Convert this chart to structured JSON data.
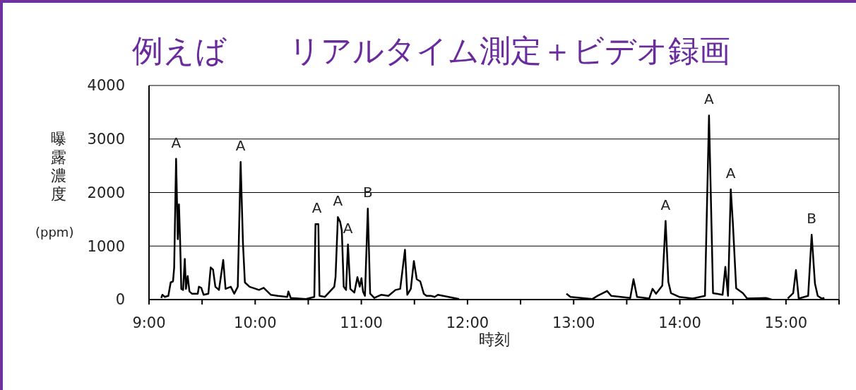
{
  "chart_data": {
    "type": "line",
    "title": "例えば　　リアルタイム測定＋ビデオ録画",
    "xlabel": "時刻",
    "ylabel": "曝露濃度 (ppm)",
    "x": [
      9.115,
      9.126,
      9.148,
      9.182,
      9.204,
      9.226,
      9.237,
      9.255,
      9.271,
      9.282,
      9.293,
      9.304,
      9.321,
      9.337,
      9.348,
      9.364,
      9.381,
      9.404,
      9.459,
      9.47,
      9.492,
      9.514,
      9.559,
      9.581,
      9.603,
      9.625,
      9.659,
      9.699,
      9.721,
      9.77,
      9.803,
      9.836,
      9.863,
      9.885,
      9.903,
      9.947,
      10.036,
      10.08,
      10.146,
      10.213,
      10.302,
      10.313,
      10.335,
      10.479,
      10.557,
      10.568,
      10.595,
      10.606,
      10.657,
      10.745,
      10.757,
      10.779,
      10.801,
      10.816,
      10.834,
      10.856,
      10.874,
      10.896,
      10.934,
      10.963,
      10.985,
      11.001,
      11.016,
      11.034,
      11.061,
      11.083,
      11.122,
      11.189,
      11.255,
      11.322,
      11.366,
      11.411,
      11.433,
      11.466,
      11.495,
      11.522,
      11.555,
      11.588,
      11.614,
      11.655,
      11.691,
      11.721,
      11.921,
      12.4,
      12.932,
      12.97,
      13.175,
      13.226,
      13.315,
      13.354,
      13.533,
      13.564,
      13.597,
      13.712,
      13.743,
      13.776,
      13.835,
      13.866,
      13.892,
      13.917,
      13.993,
      14.122,
      14.237,
      14.275,
      14.313,
      14.403,
      14.429,
      14.454,
      14.48,
      14.5,
      14.531,
      14.595,
      14.634,
      14.812,
      14.864,
      14.95,
      15.017,
      15.068,
      15.094,
      15.12,
      15.209,
      15.242,
      15.273,
      15.299,
      15.337,
      15.362
    ],
    "series": [
      {
        "color": "#000000",
        "values": [
          30,
          90,
          50,
          70,
          320,
          340,
          600,
          2630,
          1130,
          1780,
          1090,
          200,
          180,
          760,
          200,
          440,
          150,
          110,
          110,
          240,
          220,
          90,
          110,
          600,
          560,
          240,
          180,
          740,
          200,
          240,
          110,
          240,
          2570,
          1050,
          320,
          240,
          180,
          220,
          90,
          70,
          50,
          150,
          30,
          10,
          50,
          1410,
          1410,
          70,
          50,
          240,
          420,
          1540,
          1450,
          1290,
          240,
          180,
          1030,
          200,
          130,
          420,
          240,
          400,
          150,
          70,
          1700,
          110,
          30,
          90,
          70,
          180,
          200,
          930,
          90,
          200,
          720,
          380,
          340,
          110,
          70,
          70,
          50,
          90,
          10,
          null,
          110,
          50,
          10,
          70,
          160,
          70,
          30,
          380,
          50,
          20,
          200,
          110,
          260,
          1470,
          330,
          120,
          50,
          20,
          70,
          3440,
          120,
          90,
          610,
          70,
          2060,
          1420,
          210,
          120,
          20,
          30,
          0,
          null,
          20,
          120,
          550,
          20,
          70,
          1210,
          300,
          70,
          20,
          30
        ]
      }
    ],
    "xlim": [
      9,
      15.5
    ],
    "xticks": [
      {
        "value": 9,
        "label": "9:00"
      },
      {
        "value": 9.5,
        "label": null
      },
      {
        "value": 10,
        "label": "10:00"
      },
      {
        "value": 10.5,
        "label": null
      },
      {
        "value": 11,
        "label": "11:00"
      },
      {
        "value": 11.5,
        "label": null
      },
      {
        "value": 12,
        "label": "12:00"
      },
      {
        "value": 12.5,
        "label": null
      },
      {
        "value": 13,
        "label": "13:00"
      },
      {
        "value": 13.5,
        "label": null
      },
      {
        "value": 14,
        "label": "14:00"
      },
      {
        "value": 14.5,
        "label": null
      },
      {
        "value": 15,
        "label": "15:00"
      },
      {
        "value": 15.5,
        "label": null
      }
    ],
    "ylim": [
      0,
      4000
    ],
    "yticks": [
      0,
      1000,
      2000,
      3000,
      4000
    ],
    "grid": "y",
    "marker": "none",
    "line_style": "solid",
    "annotations": [
      {
        "text": "A",
        "x": 9.255,
        "y": 2630
      },
      {
        "text": "A",
        "x": 9.863,
        "y": 2570
      },
      {
        "text": "A",
        "x": 10.58,
        "y": 1410
      },
      {
        "text": "A",
        "x": 10.779,
        "y": 1540
      },
      {
        "text": "A",
        "x": 10.874,
        "y": 1030
      },
      {
        "text": "B",
        "x": 11.061,
        "y": 1700
      },
      {
        "text": "A",
        "x": 13.866,
        "y": 1470
      },
      {
        "text": "A",
        "x": 14.275,
        "y": 3440
      },
      {
        "text": "A",
        "x": 14.48,
        "y": 2060
      },
      {
        "text": "B",
        "x": 15.242,
        "y": 1210
      }
    ]
  }
}
